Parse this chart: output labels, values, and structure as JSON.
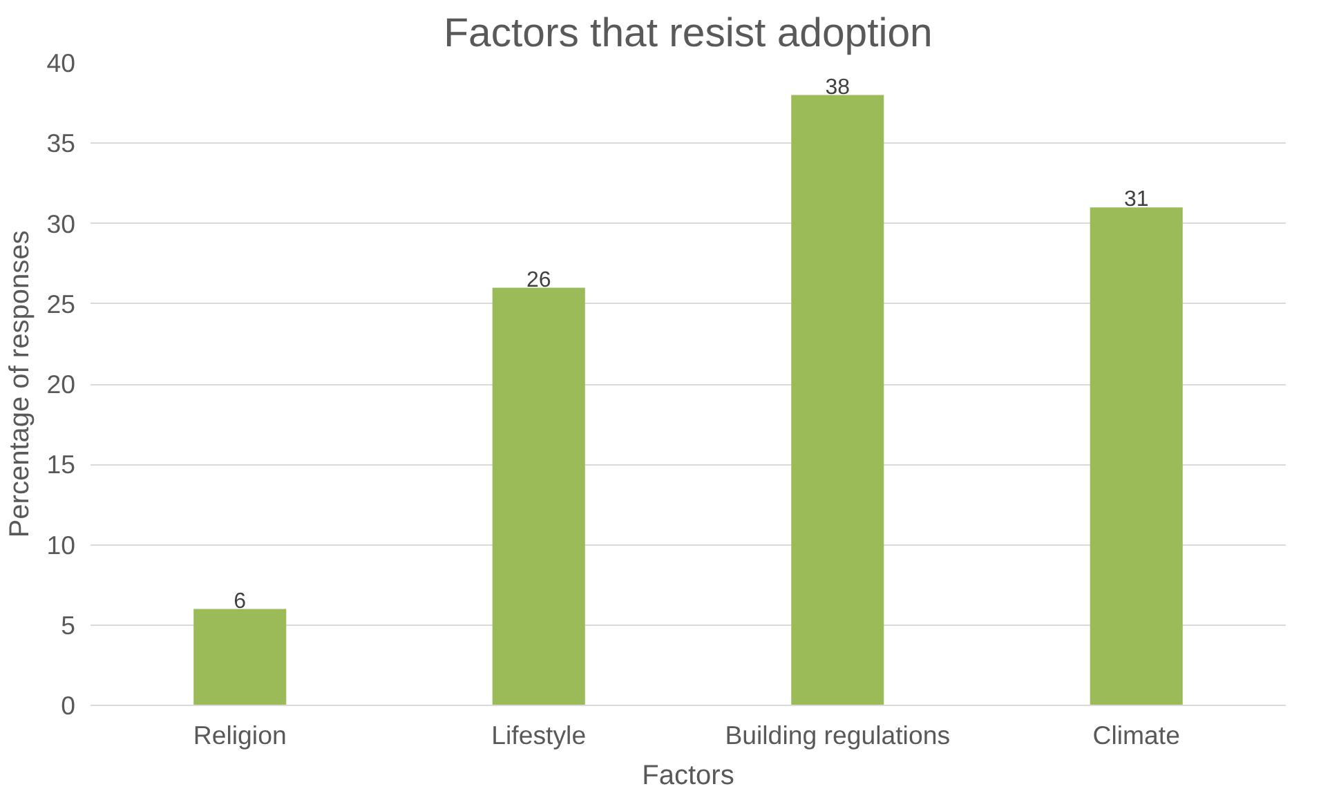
{
  "chart_data": {
    "type": "bar",
    "title": "Factors that resist adoption",
    "xlabel": "Factors",
    "ylabel": "Percentage of responses",
    "categories": [
      "Religion",
      "Lifestyle",
      "Building regulations",
      "Climate"
    ],
    "values": [
      6,
      26,
      38,
      31
    ],
    "color": "#9bbb59",
    "ylim": [
      0,
      40
    ],
    "yticks": [
      0,
      5,
      10,
      15,
      20,
      25,
      30,
      35,
      40
    ],
    "grid": "y",
    "data_labels": true
  }
}
